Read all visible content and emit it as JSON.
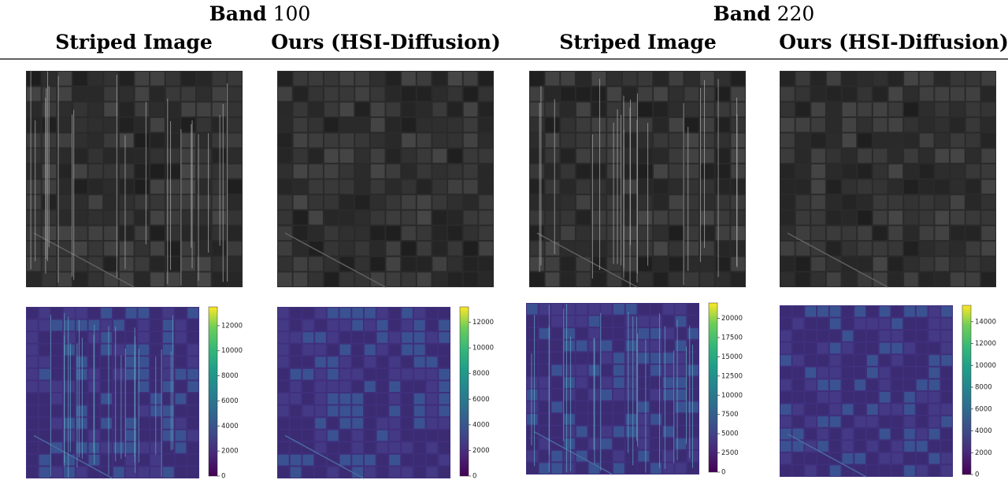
{
  "figure": {
    "groups": [
      {
        "label": "Band",
        "number": 100,
        "columns": [
          {
            "title": "Striped Image",
            "striped": true,
            "colorbar": {
              "max": 13500,
              "ticks": [
                0,
                2000,
                4000,
                6000,
                8000,
                10000,
                12000
              ]
            }
          },
          {
            "title": "Ours (HSI-Diffusion)",
            "striped": false,
            "colorbar": {
              "max": 13200,
              "ticks": [
                0,
                2000,
                4000,
                6000,
                8000,
                10000,
                12000
              ]
            }
          }
        ]
      },
      {
        "label": "Band",
        "number": 220,
        "columns": [
          {
            "title": "Striped Image",
            "striped": true,
            "colorbar": {
              "max": 22000,
              "ticks": [
                0,
                2500,
                5000,
                7500,
                10000,
                12500,
                15000,
                17500,
                20000
              ]
            }
          },
          {
            "title": "Ours (HSI-Diffusion)",
            "striped": false,
            "colorbar": {
              "max": 15500,
              "ticks": [
                0,
                2000,
                4000,
                6000,
                8000,
                10000,
                12000,
                14000
              ]
            }
          }
        ]
      }
    ]
  }
}
